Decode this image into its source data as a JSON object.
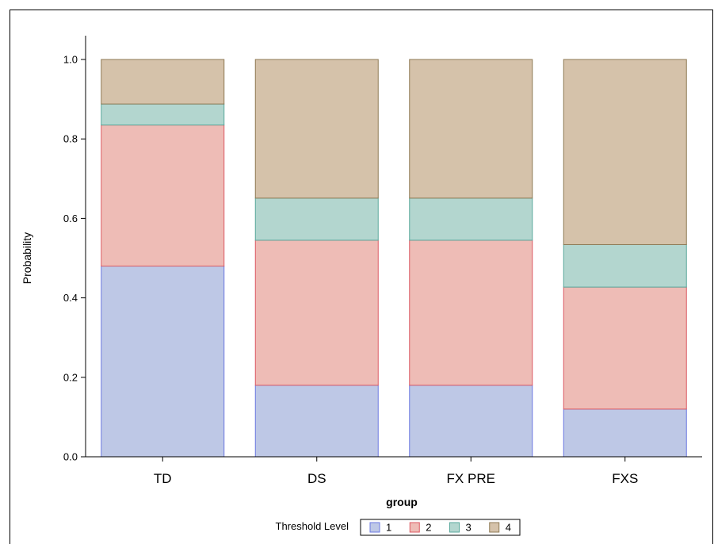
{
  "chart_data": {
    "type": "bar",
    "stacked": true,
    "categories": [
      "TD",
      "DS",
      "FX PRE",
      "FXS"
    ],
    "series": [
      {
        "name": "1",
        "values": [
          0.48,
          0.18,
          0.18,
          0.12
        ],
        "fill": "#bec8e6",
        "stroke": "#6b79e0"
      },
      {
        "name": "2",
        "values": [
          0.355,
          0.365,
          0.365,
          0.307
        ],
        "fill": "#eebcb6",
        "stroke": "#dc5a63"
      },
      {
        "name": "3",
        "values": [
          0.053,
          0.106,
          0.106,
          0.107
        ],
        "fill": "#b3d6cf",
        "stroke": "#5aa89c"
      },
      {
        "name": "4",
        "values": [
          0.112,
          0.349,
          0.349,
          0.466
        ],
        "fill": "#d5c2aa",
        "stroke": "#8f7a55"
      }
    ],
    "xlabel": "group",
    "ylabel": "Probability",
    "ylim": [
      0,
      1.0
    ],
    "yticks": [
      "0.0",
      "0.2",
      "0.4",
      "0.6",
      "0.8",
      "1.0"
    ],
    "legend": {
      "title": "Threshold Level",
      "placement": "bottom-center",
      "labels": [
        "1",
        "2",
        "3",
        "4"
      ]
    },
    "grid": false
  }
}
